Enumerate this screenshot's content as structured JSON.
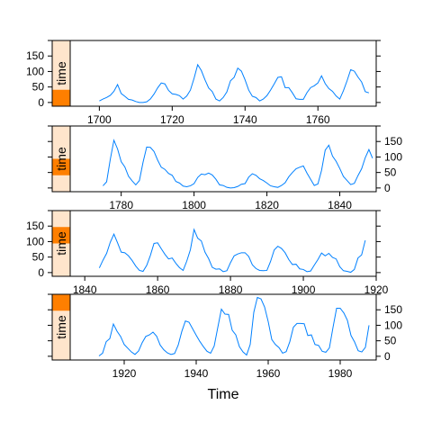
{
  "chart_data": {
    "type": "line",
    "xlabel": "Time",
    "ylabel": "",
    "strip_label": "time",
    "colors": {
      "line": "#0080ff",
      "strip_bg": "#ffe5cc",
      "strip_fill": "#ff7f00",
      "frame": "#000000"
    },
    "y_ticks": [
      0,
      50,
      100,
      150
    ],
    "ylim": [
      -12,
      200
    ],
    "panels": [
      {
        "xlim": [
          1692,
          1776
        ],
        "x_ticks": [
          1700,
          1720,
          1740,
          1760
        ],
        "y_axis_side": "left",
        "x_axis_side": "bottom",
        "strip_fraction": [
          0.0,
          0.25
        ],
        "x": [
          1700,
          1701,
          1702,
          1703,
          1704,
          1705,
          1706,
          1707,
          1708,
          1709,
          1710,
          1711,
          1712,
          1713,
          1714,
          1715,
          1716,
          1717,
          1718,
          1719,
          1720,
          1721,
          1722,
          1723,
          1724,
          1725,
          1726,
          1727,
          1728,
          1729,
          1730,
          1731,
          1732,
          1733,
          1734,
          1735,
          1736,
          1737,
          1738,
          1739,
          1740,
          1741,
          1742,
          1743,
          1744,
          1745,
          1746,
          1747,
          1748,
          1749,
          1750,
          1751,
          1752,
          1753,
          1754,
          1755,
          1756,
          1757,
          1758,
          1759,
          1760,
          1761,
          1762,
          1763,
          1764,
          1765,
          1766,
          1767,
          1768,
          1769,
          1770,
          1771,
          1772,
          1773,
          1774
        ],
        "y": [
          5,
          11,
          16,
          23,
          36,
          58,
          29,
          20,
          10,
          8,
          3,
          0,
          0,
          2,
          11,
          27,
          47,
          63,
          60,
          39,
          28,
          26,
          22,
          11,
          21,
          40,
          78,
          122,
          103,
          73,
          47,
          35,
          11,
          5,
          16,
          34,
          70,
          81,
          111,
          101,
          73,
          40,
          20,
          16,
          5,
          11,
          22,
          40,
          60,
          81,
          83,
          48,
          48,
          31,
          12,
          10,
          10,
          32,
          48,
          54,
          63,
          86,
          61,
          45,
          36,
          21,
          11,
          38,
          70,
          106,
          101,
          82,
          66,
          35,
          31
        ]
      },
      {
        "xlim": [
          1766,
          1850
        ],
        "x_ticks": [
          1780,
          1800,
          1820,
          1840
        ],
        "y_axis_side": "right",
        "x_axis_side": "bottom",
        "strip_fraction": [
          0.25,
          0.5
        ],
        "x": [
          1775,
          1776,
          1777,
          1778,
          1779,
          1780,
          1781,
          1782,
          1783,
          1784,
          1785,
          1786,
          1787,
          1788,
          1789,
          1790,
          1791,
          1792,
          1793,
          1794,
          1795,
          1796,
          1797,
          1798,
          1799,
          1800,
          1801,
          1802,
          1803,
          1804,
          1805,
          1806,
          1807,
          1808,
          1809,
          1810,
          1811,
          1812,
          1813,
          1814,
          1815,
          1816,
          1817,
          1818,
          1819,
          1820,
          1821,
          1822,
          1823,
          1824,
          1825,
          1826,
          1827,
          1828,
          1829,
          1830,
          1831,
          1832,
          1833,
          1834,
          1835,
          1836,
          1837,
          1838,
          1839,
          1840,
          1841,
          1842,
          1843,
          1844,
          1845,
          1846,
          1847,
          1848,
          1849
        ],
        "y": [
          7,
          20,
          92,
          154,
          126,
          85,
          68,
          38,
          23,
          10,
          24,
          83,
          132,
          131,
          118,
          90,
          67,
          60,
          47,
          41,
          21,
          16,
          6,
          4,
          7,
          14,
          34,
          45,
          43,
          48,
          42,
          28,
          10,
          8,
          2,
          0,
          1,
          5,
          12,
          14,
          35,
          46,
          41,
          30,
          24,
          16,
          7,
          4,
          2,
          8,
          17,
          36,
          50,
          62,
          67,
          71,
          48,
          28,
          8,
          13,
          57,
          122,
          138,
          103,
          86,
          63,
          37,
          24,
          11,
          15,
          40,
          62,
          98,
          124,
          96
        ]
      },
      {
        "xlim": [
          1836,
          1920
        ],
        "x_ticks": [
          1840,
          1860,
          1880,
          1900,
          1920
        ],
        "y_axis_side": "left",
        "x_axis_side": "bottom",
        "strip_fraction": [
          0.5,
          0.75
        ],
        "x": [
          1844,
          1845,
          1846,
          1847,
          1848,
          1849,
          1850,
          1851,
          1852,
          1853,
          1854,
          1855,
          1856,
          1857,
          1858,
          1859,
          1860,
          1861,
          1862,
          1863,
          1864,
          1865,
          1866,
          1867,
          1868,
          1869,
          1870,
          1871,
          1872,
          1873,
          1874,
          1875,
          1876,
          1877,
          1878,
          1879,
          1880,
          1881,
          1882,
          1883,
          1884,
          1885,
          1886,
          1887,
          1888,
          1889,
          1890,
          1891,
          1892,
          1893,
          1894,
          1895,
          1896,
          1897,
          1898,
          1899,
          1900,
          1901,
          1902,
          1903,
          1904,
          1905,
          1906,
          1907,
          1908,
          1909,
          1910,
          1911,
          1912,
          1913,
          1914,
          1915,
          1916,
          1917
        ],
        "y": [
          15,
          40,
          62,
          98,
          124,
          96,
          66,
          64,
          54,
          39,
          21,
          7,
          4,
          23,
          55,
          94,
          96,
          77,
          59,
          44,
          47,
          30,
          16,
          7,
          37,
          74,
          139,
          111,
          102,
          66,
          45,
          17,
          11,
          12,
          3,
          6,
          32,
          54,
          60,
          64,
          64,
          52,
          25,
          13,
          7,
          6,
          7,
          36,
          73,
          85,
          78,
          64,
          42,
          26,
          27,
          12,
          10,
          3,
          5,
          24,
          42,
          63,
          54,
          62,
          49,
          44,
          19,
          6,
          4,
          1,
          10,
          47,
          57,
          104
        ]
      },
      {
        "xlim": [
          1905,
          1990
        ],
        "x_ticks": [
          1920,
          1940,
          1960,
          1980
        ],
        "y_axis_side": "right",
        "x_axis_side": "bottom",
        "strip_fraction": [
          0.75,
          1.0
        ],
        "x": [
          1913,
          1914,
          1915,
          1916,
          1917,
          1918,
          1919,
          1920,
          1921,
          1922,
          1923,
          1924,
          1925,
          1926,
          1927,
          1928,
          1929,
          1930,
          1931,
          1932,
          1933,
          1934,
          1935,
          1936,
          1937,
          1938,
          1939,
          1940,
          1941,
          1942,
          1943,
          1944,
          1945,
          1946,
          1947,
          1948,
          1949,
          1950,
          1951,
          1952,
          1953,
          1954,
          1955,
          1956,
          1957,
          1958,
          1959,
          1960,
          1961,
          1962,
          1963,
          1964,
          1965,
          1966,
          1967,
          1968,
          1969,
          1970,
          1971,
          1972,
          1973,
          1974,
          1975,
          1976,
          1977,
          1978,
          1979,
          1980,
          1981,
          1982,
          1983,
          1984,
          1985,
          1986,
          1987,
          1988
        ],
        "y": [
          1,
          10,
          47,
          57,
          104,
          81,
          64,
          38,
          26,
          14,
          6,
          17,
          44,
          64,
          69,
          78,
          65,
          36,
          21,
          11,
          6,
          9,
          36,
          80,
          114,
          110,
          89,
          68,
          48,
          31,
          16,
          10,
          33,
          93,
          152,
          136,
          135,
          84,
          69,
          31,
          14,
          4,
          38,
          142,
          190,
          185,
          159,
          112,
          54,
          38,
          28,
          10,
          15,
          47,
          94,
          106,
          106,
          105,
          67,
          69,
          38,
          35,
          16,
          13,
          27,
          93,
          155,
          155,
          140,
          116,
          67,
          46,
          18,
          14,
          29,
          100
        ]
      }
    ]
  }
}
